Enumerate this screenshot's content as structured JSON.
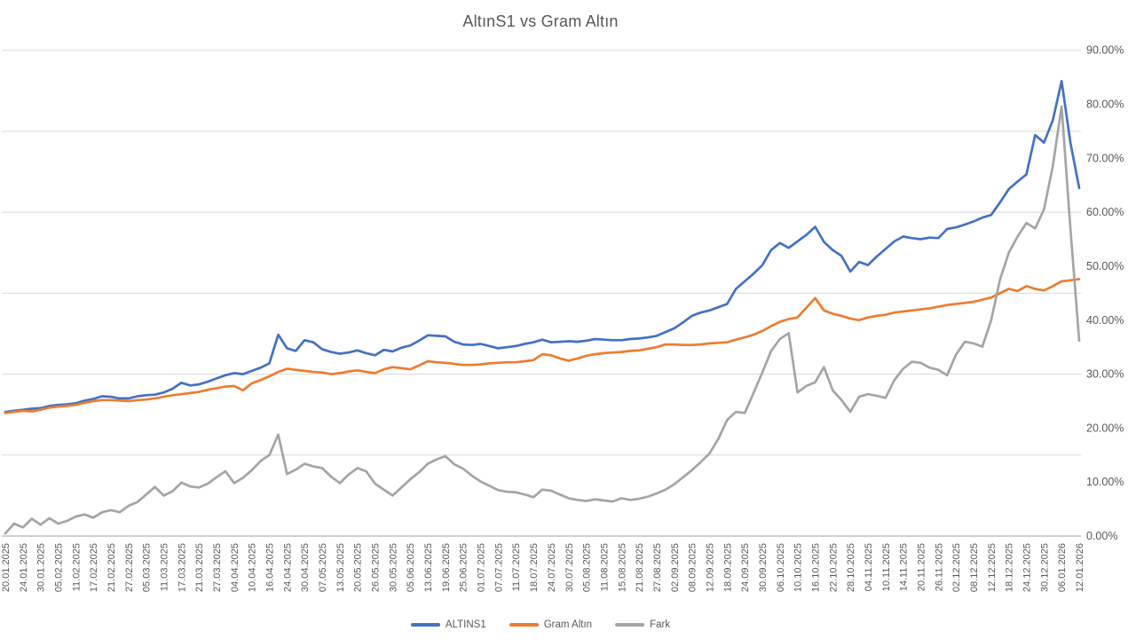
{
  "title": "AltınS1 vs Gram Altın",
  "colors": {
    "accent_blue": "#4472C4",
    "accent_orange": "#ED7D31",
    "accent_gray": "#A5A5A5",
    "text": "#595959",
    "gridline": "#D9D9D9",
    "axis_line": "#BFBFBF",
    "background": "#FFFFFF"
  },
  "chart_data": {
    "type": "line",
    "title": "AltınS1 vs Gram Altın",
    "xlabel": "",
    "ylabel": "",
    "grid": "horizontal",
    "legend_position": "bottom",
    "y_axis": {
      "min": 0,
      "max": 90,
      "tick_step": 10,
      "gridline_step": 15,
      "tick_format": "0.00%",
      "side": "right"
    },
    "y_ticks": [
      "0.00%",
      "10.00%",
      "20.00%",
      "30.00%",
      "40.00%",
      "50.00%",
      "60.00%",
      "70.00%",
      "80.00%",
      "90.00%"
    ],
    "x_labels": [
      "20.01.2025",
      "24.01.2025",
      "30.01.2025",
      "05.02.2025",
      "11.02.2025",
      "17.02.2025",
      "21.02.2025",
      "27.02.2025",
      "05.03.2025",
      "11.03.2025",
      "17.03.2025",
      "21.03.2025",
      "27.03.2025",
      "04.04.2025",
      "10.04.2025",
      "16.04.2025",
      "24.04.2025",
      "30.04.2025",
      "07.05.2025",
      "13.05.2025",
      "20.05.2025",
      "26.05.2025",
      "30.05.2025",
      "05.06.2025",
      "13.06.2025",
      "19.06.2025",
      "25.06.2025",
      "01.07.2025",
      "07.07.2025",
      "11.07.2025",
      "18.07.2025",
      "24.07.2025",
      "30.07.2025",
      "05.08.2025",
      "11.08.2025",
      "15.08.2025",
      "21.08.2025",
      "27.08.2025",
      "02.09.2025",
      "08.09.2025",
      "12.09.2025",
      "18.09.2025",
      "24.09.2025",
      "30.09.2025",
      "06.10.2025",
      "10.10.2025",
      "16.10.2025",
      "22.10.2025",
      "28.10.2025",
      "04.11.2025",
      "10.11.2025",
      "14.11.2025",
      "20.11.2025",
      "26.11.2025",
      "02.12.2025",
      "08.12.2025",
      "12.12.2025",
      "18.12.2025",
      "24.12.2025",
      "30.12.2025",
      "06.01.2026",
      "12.01.2026"
    ],
    "values_per_label": 2,
    "series": [
      {
        "name": "ALTINS1",
        "color": "#4472C4",
        "values": [
          23.0,
          23.2,
          23.4,
          23.6,
          23.7,
          24.1,
          24.3,
          24.4,
          24.6,
          25.1,
          25.4,
          25.9,
          25.8,
          25.5,
          25.5,
          25.9,
          26.1,
          26.2,
          26.6,
          27.3,
          28.4,
          27.9,
          28.1,
          28.6,
          29.2,
          29.8,
          30.2,
          30.0,
          30.6,
          31.2,
          32.0,
          37.3,
          34.8,
          34.3,
          36.3,
          35.9,
          34.6,
          34.1,
          33.8,
          34.0,
          34.4,
          33.9,
          33.5,
          34.5,
          34.2,
          34.9,
          35.3,
          36.2,
          37.2,
          37.1,
          37.0,
          36.0,
          35.5,
          35.4,
          35.6,
          35.2,
          34.8,
          35.0,
          35.2,
          35.6,
          35.9,
          36.4,
          35.9,
          36.0,
          36.1,
          36.0,
          36.2,
          36.5,
          36.4,
          36.3,
          36.3,
          36.5,
          36.6,
          36.8,
          37.1,
          37.8,
          38.5,
          39.6,
          40.8,
          41.4,
          41.8,
          42.4,
          43.0,
          45.8,
          47.2,
          48.6,
          50.2,
          53.0,
          54.3,
          53.4,
          54.6,
          55.8,
          57.3,
          54.5,
          53.0,
          51.9,
          49.0,
          50.8,
          50.2,
          51.8,
          53.2,
          54.6,
          55.5,
          55.2,
          55.0,
          55.3,
          55.2,
          56.9,
          57.2,
          57.7,
          58.3,
          59.0,
          59.5,
          61.8,
          64.3,
          65.7,
          67.0,
          74.3,
          72.9,
          77.0,
          84.3,
          72.9,
          64.5
        ]
      },
      {
        "name": "Gram Altın",
        "color": "#ED7D31",
        "values": [
          22.8,
          23.0,
          23.2,
          23.1,
          23.4,
          23.8,
          24.0,
          24.1,
          24.3,
          24.7,
          25.0,
          25.2,
          25.2,
          25.1,
          25.0,
          25.2,
          25.3,
          25.5,
          25.8,
          26.1,
          26.3,
          26.5,
          26.7,
          27.1,
          27.4,
          27.7,
          27.8,
          27.0,
          28.3,
          28.9,
          29.6,
          30.4,
          31.0,
          30.8,
          30.6,
          30.4,
          30.3,
          30.0,
          30.2,
          30.5,
          30.7,
          30.4,
          30.2,
          30.9,
          31.3,
          31.1,
          30.9,
          31.6,
          32.4,
          32.2,
          32.1,
          31.9,
          31.7,
          31.7,
          31.8,
          32.0,
          32.1,
          32.2,
          32.2,
          32.4,
          32.6,
          33.7,
          33.5,
          32.9,
          32.5,
          32.9,
          33.4,
          33.7,
          33.9,
          34.0,
          34.1,
          34.3,
          34.4,
          34.7,
          35.0,
          35.5,
          35.5,
          35.4,
          35.4,
          35.5,
          35.7,
          35.8,
          35.9,
          36.4,
          36.8,
          37.3,
          38.0,
          38.9,
          39.7,
          40.2,
          40.5,
          42.3,
          44.1,
          41.8,
          41.2,
          40.8,
          40.3,
          40.0,
          40.5,
          40.8,
          41.0,
          41.4,
          41.6,
          41.8,
          42.0,
          42.2,
          42.5,
          42.8,
          43.0,
          43.2,
          43.4,
          43.8,
          44.2,
          45.0,
          45.8,
          45.4,
          46.3,
          45.8,
          45.5,
          46.3,
          47.2,
          47.4,
          47.6
        ]
      },
      {
        "name": "Fark",
        "color": "#A5A5A5",
        "values": [
          0.5,
          2.3,
          1.6,
          3.2,
          2.1,
          3.3,
          2.3,
          2.8,
          3.6,
          4.0,
          3.4,
          4.4,
          4.8,
          4.4,
          5.6,
          6.3,
          7.7,
          9.1,
          7.5,
          8.3,
          9.9,
          9.2,
          9.0,
          9.7,
          10.9,
          12.0,
          9.8,
          10.8,
          12.2,
          13.9,
          15.0,
          18.8,
          11.5,
          12.3,
          13.4,
          12.9,
          12.6,
          11.0,
          9.8,
          11.4,
          12.6,
          12.0,
          9.7,
          8.6,
          7.5,
          9.0,
          10.5,
          11.8,
          13.4,
          14.2,
          14.8,
          13.3,
          12.5,
          11.2,
          10.1,
          9.3,
          8.5,
          8.2,
          8.1,
          7.7,
          7.2,
          8.6,
          8.4,
          7.7,
          7.0,
          6.7,
          6.5,
          6.8,
          6.6,
          6.4,
          7.0,
          6.7,
          6.9,
          7.3,
          7.9,
          8.6,
          9.6,
          10.9,
          12.2,
          13.7,
          15.3,
          18.0,
          21.5,
          23.0,
          22.8,
          26.5,
          30.3,
          34.3,
          36.5,
          37.6,
          26.6,
          27.8,
          28.5,
          31.3,
          27.0,
          25.2,
          23.0,
          25.8,
          26.3,
          26.0,
          25.6,
          28.9,
          31.0,
          32.3,
          32.1,
          31.2,
          30.8,
          29.8,
          33.6,
          36.0,
          35.7,
          35.1,
          40.0,
          47.5,
          52.5,
          55.5,
          58.0,
          57.0,
          60.5,
          68.5,
          79.6,
          57.0,
          36.2
        ]
      }
    ]
  }
}
